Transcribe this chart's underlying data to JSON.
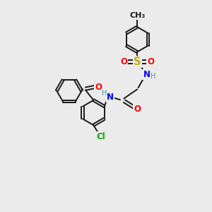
{
  "bg_color": "#ebebeb",
  "bond_color": "#1a1a1a",
  "atom_colors": {
    "O": "#ff0000",
    "N": "#0000ee",
    "S": "#ccaa00",
    "Cl": "#00aa00",
    "H": "#4a9aaa",
    "C": "#1a1a1a"
  },
  "font_size": 8.5,
  "bond_width": 1.4,
  "dbo": 0.055
}
